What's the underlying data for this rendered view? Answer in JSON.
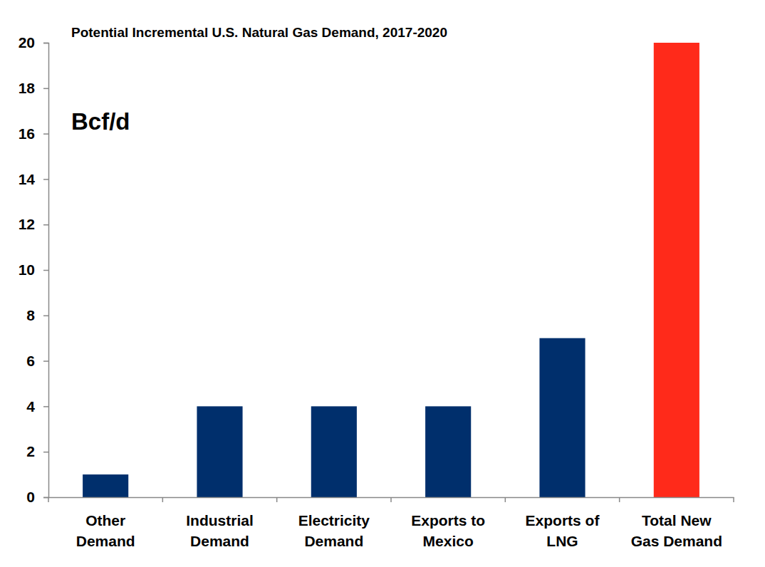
{
  "chart_data": {
    "type": "bar",
    "title": "Potential Incremental U.S. Natural Gas Demand, 2017-2020",
    "y_label": "Bcf/d",
    "categories": [
      "Other Demand",
      "Industrial Demand",
      "Electricity Demand",
      "Exports to Mexico",
      "Exports of LNG",
      "Total New Gas Demand"
    ],
    "values": [
      1,
      4,
      4,
      4,
      7,
      20
    ],
    "colors": [
      "#002f6c",
      "#002f6c",
      "#002f6c",
      "#002f6c",
      "#002f6c",
      "#ff2a1a"
    ],
    "ylim": [
      0,
      20
    ],
    "yticks": [
      0,
      2,
      4,
      6,
      8,
      10,
      12,
      14,
      16,
      18,
      20
    ],
    "grid": false
  }
}
